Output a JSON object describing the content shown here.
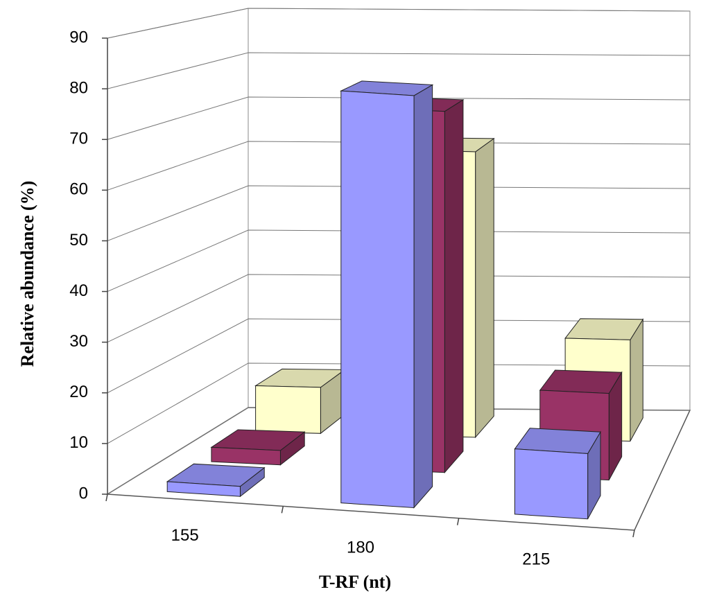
{
  "chart_data": {
    "type": "bar3d",
    "xlabel": "T-RF (nt)",
    "ylabel": "Relative abundance (%)",
    "categories": [
      "155",
      "180",
      "215"
    ],
    "series": [
      {
        "color": "#9999ff",
        "values": [
          2,
          82,
          13
        ]
      },
      {
        "color": "#993366",
        "values": [
          3,
          75,
          18
        ]
      },
      {
        "color": "#ffffcc",
        "values": [
          10,
          62,
          22
        ]
      }
    ],
    "ylim": [
      0,
      90
    ],
    "yticks": [
      0,
      10,
      20,
      30,
      40,
      50,
      60,
      70,
      80,
      90
    ],
    "grid": true
  }
}
